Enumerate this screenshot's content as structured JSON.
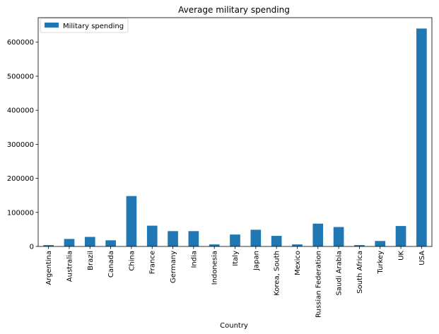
{
  "chart_data": {
    "type": "bar",
    "title": "Average military spending",
    "xlabel": "Country",
    "ylabel": "",
    "ylim": [
      0,
      672000
    ],
    "yticks": [
      0,
      100000,
      200000,
      300000,
      400000,
      500000,
      600000
    ],
    "ytick_labels": [
      "0",
      "100000",
      "200000",
      "300000",
      "400000",
      "500000",
      "600000"
    ],
    "grid": false,
    "legend_position": "top-left",
    "categories": [
      "Argentina",
      "Australia",
      "Brazil",
      "Canada",
      "China",
      "France",
      "Germany",
      "India",
      "Indonesia",
      "Italy",
      "Japan",
      "Korea, South",
      "Mexico",
      "Russian Federation",
      "Saudi Arabia",
      "South Africa",
      "Turkey",
      "UK",
      "USA"
    ],
    "series": [
      {
        "name": "Military spending",
        "color": "#1f77b4",
        "values": [
          4000,
          22000,
          28000,
          18000,
          148000,
          61000,
          45000,
          45000,
          6000,
          35000,
          49000,
          31000,
          6000,
          67000,
          57000,
          4000,
          16000,
          60000,
          640000
        ]
      }
    ]
  }
}
